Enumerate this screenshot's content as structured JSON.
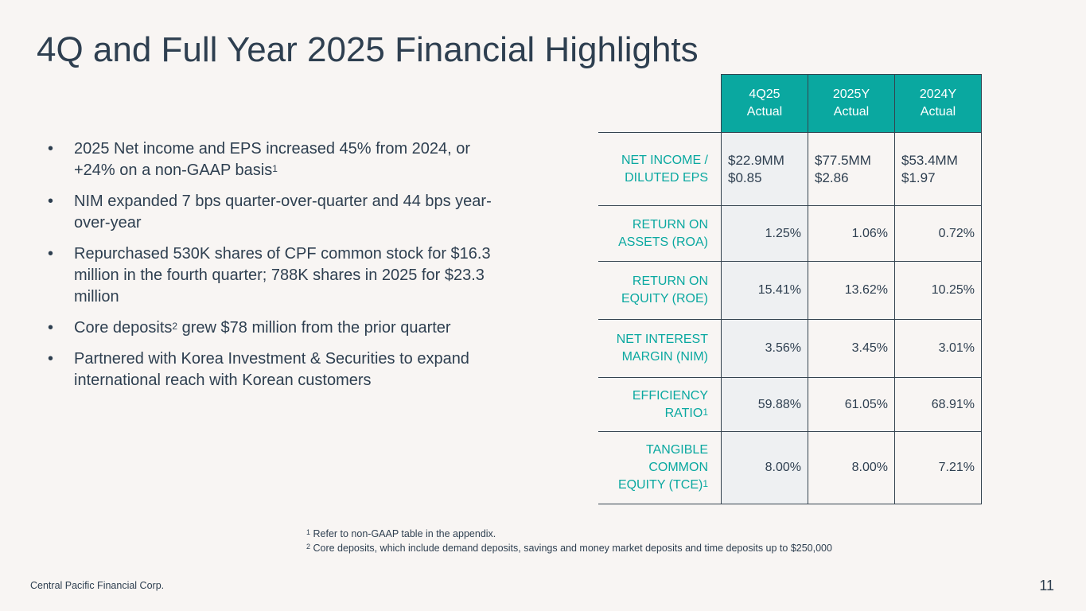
{
  "title": "4Q and Full Year 2025 Financial Highlights",
  "bullets": [
    {
      "text": "2025 Net income and EPS increased 45% from 2024, or +24% on a non-GAAP basis",
      "sup": "1",
      "after": ""
    },
    {
      "text": "NIM expanded 7 bps quarter-over-quarter and 44 bps year-over-year",
      "sup": "",
      "after": ""
    },
    {
      "text": "Repurchased 530K shares of CPF common stock for $16.3 million in the fourth quarter; 788K shares in 2025 for $23.3 million",
      "sup": "",
      "after": ""
    },
    {
      "text": "Core deposits",
      "sup": "2",
      "after": " grew $78 million from the prior quarter"
    },
    {
      "text": "Partnered with Korea Investment & Securities to expand international reach with Korean customers",
      "sup": "",
      "after": ""
    }
  ],
  "table": {
    "headers": [
      [
        "4Q25",
        "Actual"
      ],
      [
        "2025Y",
        "Actual"
      ],
      [
        "2024Y",
        "Actual"
      ]
    ],
    "rows": [
      {
        "label": "NET INCOME / DILUTED EPS",
        "sup": "",
        "values": [
          [
            "$22.9MM",
            "$0.85"
          ],
          [
            "$77.5MM",
            "$2.86"
          ],
          [
            "$53.4MM",
            "$1.97"
          ]
        ]
      },
      {
        "label": "RETURN ON ASSETS (ROA)",
        "sup": "",
        "values": [
          "1.25%",
          "1.06%",
          "0.72%"
        ]
      },
      {
        "label": "RETURN ON EQUITY (ROE)",
        "sup": "",
        "values": [
          "15.41%",
          "13.62%",
          "10.25%"
        ]
      },
      {
        "label": "NET INTEREST MARGIN (NIM)",
        "sup": "",
        "values": [
          "3.56%",
          "3.45%",
          "3.01%"
        ]
      },
      {
        "label": "EFFICIENCY RATIO",
        "sup": "1",
        "values": [
          "59.88%",
          "61.05%",
          "68.91%"
        ]
      },
      {
        "label": "TANGIBLE COMMON EQUITY (TCE)",
        "sup": "1",
        "values": [
          "8.00%",
          "8.00%",
          "7.21%"
        ]
      }
    ]
  },
  "footnotes": [
    {
      "sup": "1",
      "text": " Refer to non-GAAP table in the appendix."
    },
    {
      "sup": "2",
      "text": " Core deposits, which include demand deposits, savings and money market deposits and time deposits up to $250,000"
    }
  ],
  "footer": "Central Pacific Financial Corp.",
  "page_number": "11"
}
